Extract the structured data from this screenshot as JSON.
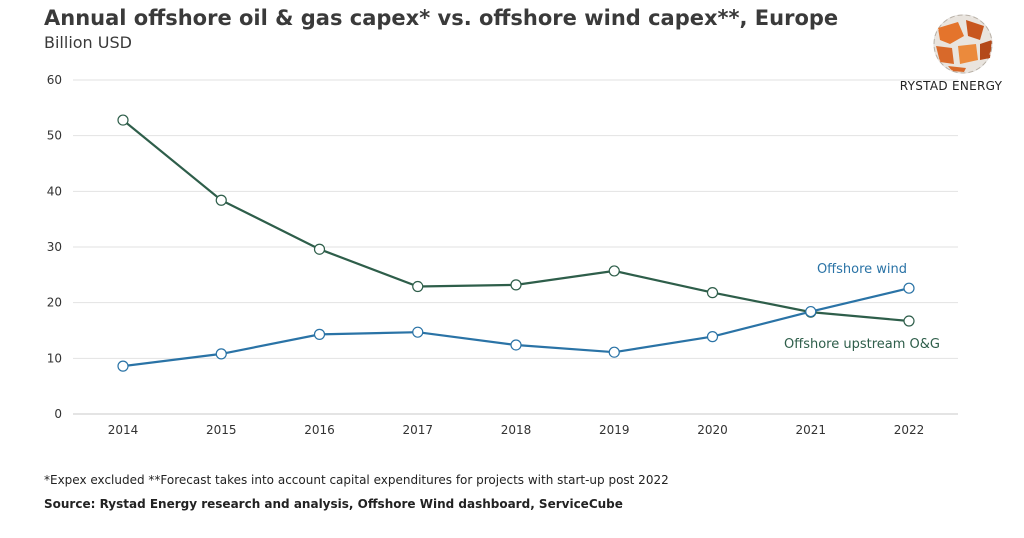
{
  "header": {
    "title": "Annual offshore oil & gas capex* vs. offshore wind capex**, Europe",
    "subtitle": "Billion USD"
  },
  "logo": {
    "text": "RYSTAD ENERGY",
    "icon": "rystad-globe-logo"
  },
  "footer": {
    "footnote": "*Expex excluded **Forecast takes into account capital expenditures for projects with start-up post 2022",
    "source": "Source: Rystad Energy research and analysis, Offshore Wind dashboard, ServiceCube"
  },
  "colors": {
    "og": "#2e5e4a",
    "wind": "#2a73a6",
    "grid": "#e2e2e2"
  },
  "chart_data": {
    "type": "line",
    "title": "Annual offshore oil & gas capex* vs. offshore wind capex**, Europe",
    "ylabel": "Billion USD",
    "xlabel": "",
    "categories": [
      "2014",
      "2015",
      "2016",
      "2017",
      "2018",
      "2019",
      "2020",
      "2021",
      "2022"
    ],
    "ylim": [
      0,
      60
    ],
    "yticks": [
      0,
      10,
      20,
      30,
      40,
      50,
      60
    ],
    "grid": true,
    "series": [
      {
        "name": "Offshore upstream O&G",
        "color": "#2e5e4a",
        "values": [
          52.8,
          38.4,
          29.6,
          22.9,
          23.2,
          25.7,
          21.8,
          18.3,
          16.7
        ]
      },
      {
        "name": "Offshore wind",
        "color": "#2a73a6",
        "values": [
          8.6,
          10.8,
          14.3,
          14.7,
          12.4,
          11.1,
          13.9,
          18.4,
          22.6
        ]
      }
    ]
  }
}
